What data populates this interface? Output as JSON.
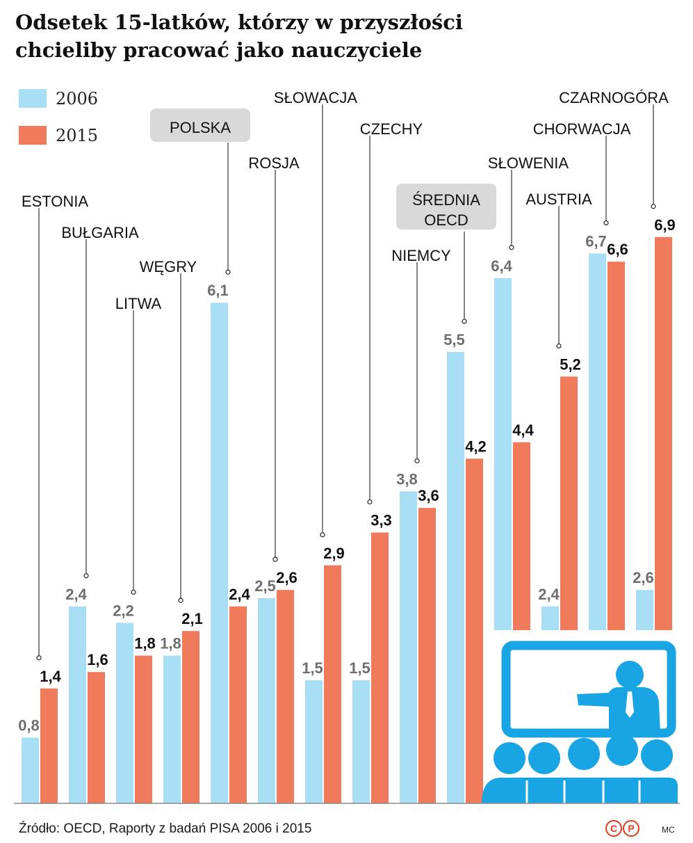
{
  "title": {
    "line1": "Odsetek 15-latków, którzy w przyszłości",
    "line2": "chcieliby pracować jako nauczyciele"
  },
  "footer": {
    "source": "Źródło: OECD, Raporty z badań PISA 2006 i 2015",
    "logo_letters": [
      "C",
      "P"
    ],
    "author": "MC"
  },
  "colors": {
    "series_2006": "#a8dff5",
    "series_2015": "#f07a5c",
    "label_2006": "#6e6e6e",
    "label_2015": "#111111",
    "highlight_box": "#d9d9d9",
    "icon": "#19a4e4"
  },
  "chart_data": {
    "type": "bar",
    "title": "Odsetek 15-latków, którzy w przyszłości chcieliby pracować jako nauczyciele",
    "xlabel": "",
    "ylabel": "",
    "ylim": [
      0,
      7.3
    ],
    "grid": false,
    "legend_position": "top-left",
    "categories": [
      "ESTONIA",
      "BUŁGARIA",
      "LITWA",
      "WĘGRY",
      "POLSKA",
      "ROSJA",
      "SŁOWACJA",
      "CZECHY",
      "NIEMCY",
      "ŚREDNIA OECD",
      "SŁOWENIA",
      "AUSTRIA",
      "CHORWACJA",
      "CZARNOGÓRA"
    ],
    "category_label_lines": [
      [
        "ESTONIA"
      ],
      [
        "BUŁGARIA"
      ],
      [
        "LITWA"
      ],
      [
        "WĘGRY"
      ],
      [
        "POLSKA"
      ],
      [
        "ROSJA"
      ],
      [
        "SŁOWACJA"
      ],
      [
        "CZECHY"
      ],
      [
        "NIEMCY"
      ],
      [
        "ŚREDNIA",
        "OECD"
      ],
      [
        "SŁOWENIA"
      ],
      [
        "AUSTRIA"
      ],
      [
        "CHORWACJA"
      ],
      [
        "CZARNOGÓRA"
      ]
    ],
    "highlighted": [
      "POLSKA",
      "ŚREDNIA OECD"
    ],
    "series": [
      {
        "name": "2006",
        "values": [
          0.8,
          2.4,
          2.2,
          1.8,
          6.1,
          2.5,
          1.5,
          1.5,
          3.8,
          5.5,
          6.4,
          2.4,
          6.7,
          2.6
        ],
        "labels": [
          "0,8",
          "2,4",
          "2,2",
          "1,8",
          "6,1",
          "2,5",
          "1,5",
          "1,5",
          "3,8",
          "5,5",
          "6,4",
          "2,4",
          "6,7",
          "2,6"
        ]
      },
      {
        "name": "2015",
        "values": [
          1.4,
          1.6,
          1.8,
          2.1,
          2.4,
          2.6,
          2.9,
          3.3,
          3.6,
          4.2,
          4.4,
          5.2,
          6.6,
          6.9
        ],
        "labels": [
          "1,4",
          "1,6",
          "1,8",
          "2,1",
          "2,4",
          "2,6",
          "2,9",
          "3,3",
          "3,6",
          "4,2",
          "4,4",
          "5,2",
          "6,6",
          "6,9"
        ]
      }
    ]
  }
}
